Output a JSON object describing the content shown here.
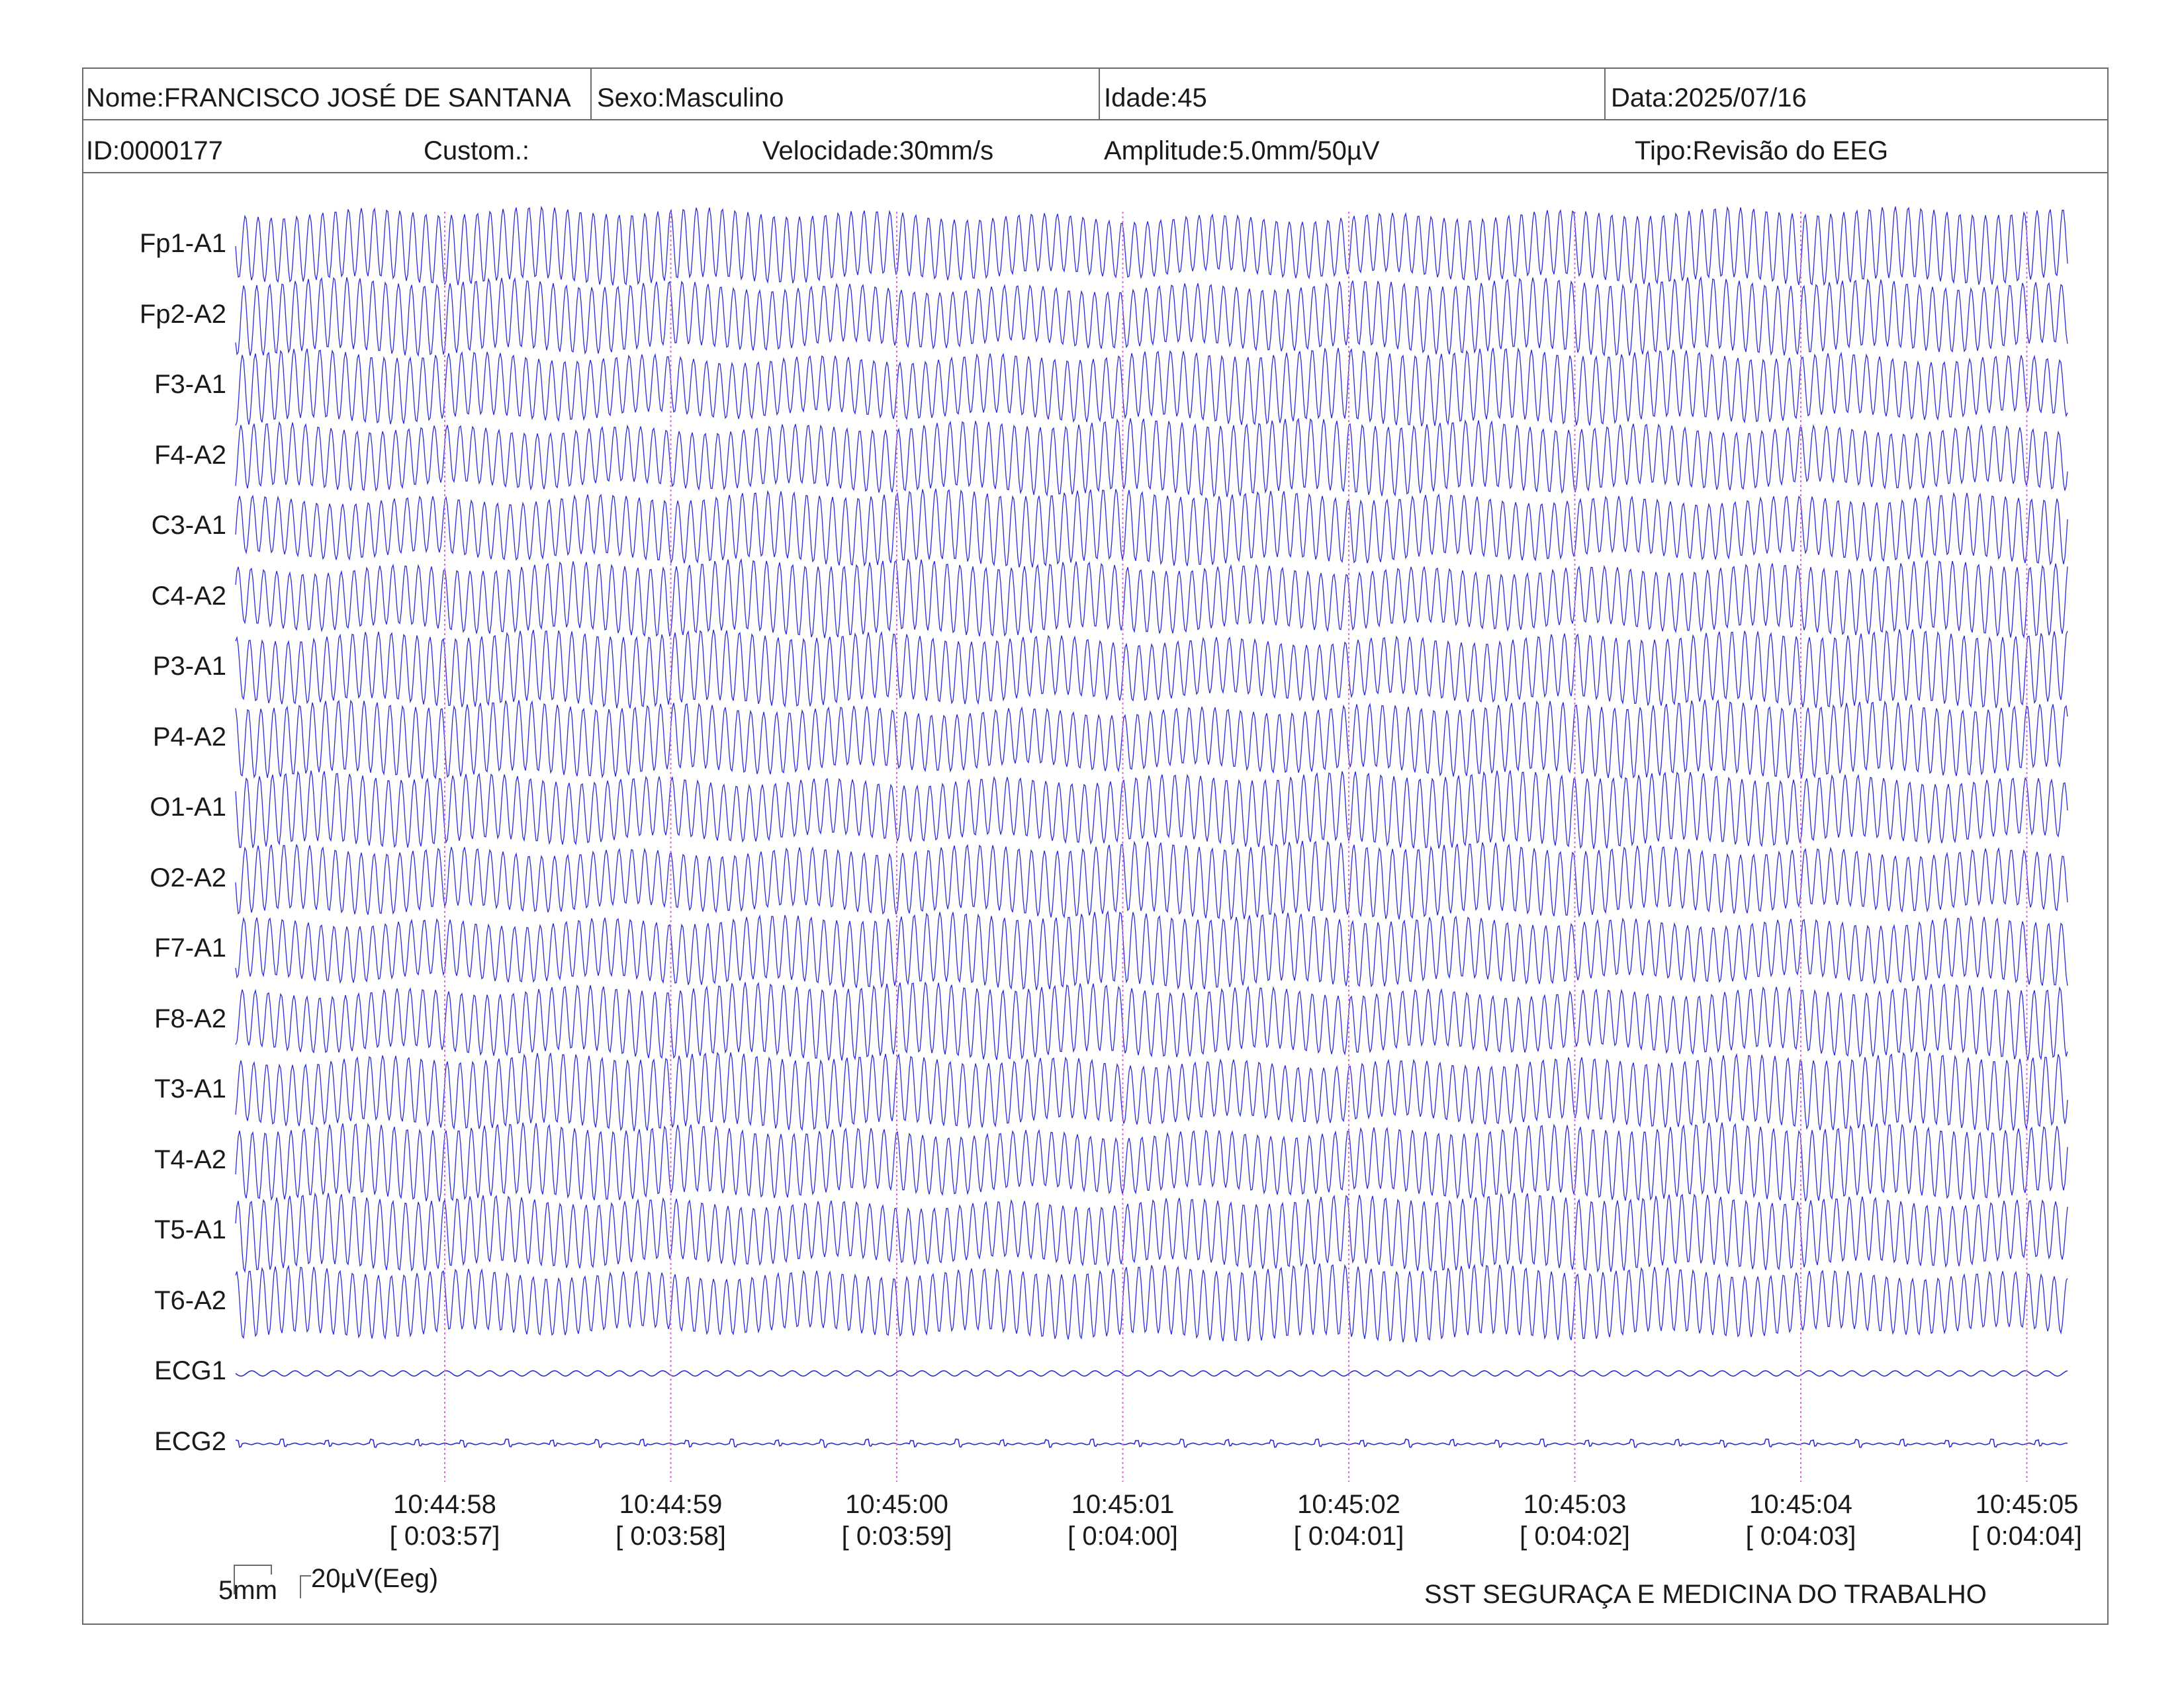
{
  "header": {
    "name": "Nome:FRANCISCO JOSÉ DE SANTANA",
    "sex": "Sexo:Masculino",
    "age": "Idade:45",
    "date": "Data:2025/07/16",
    "id": "ID:0000177",
    "custom": "Custom.:",
    "speed": "Velocidade:30mm/s",
    "amplitude": "Amplitude:5.0mm/50µV",
    "type": "Tipo:Revisão do EEG"
  },
  "channels": [
    "Fp1-A1",
    "Fp2-A2",
    "F3-A1",
    "F4-A2",
    "C3-A1",
    "C4-A2",
    "P3-A1",
    "P4-A2",
    "O1-A1",
    "O2-A2",
    "F7-A1",
    "F8-A2",
    "T3-A1",
    "T4-A2",
    "T5-A1",
    "T6-A2",
    "ECG1",
    "ECG2"
  ],
  "time_marks": [
    {
      "clock": "10:44:58",
      "elapsed": "[ 0:03:57]"
    },
    {
      "clock": "10:44:59",
      "elapsed": "[ 0:03:58]"
    },
    {
      "clock": "10:45:00",
      "elapsed": "[ 0:03:59]"
    },
    {
      "clock": "10:45:01",
      "elapsed": "[ 0:04:00]"
    },
    {
      "clock": "10:45:02",
      "elapsed": "[ 0:04:01]"
    },
    {
      "clock": "10:45:03",
      "elapsed": "[ 0:04:02]"
    },
    {
      "clock": "10:45:04",
      "elapsed": "[ 0:04:03]"
    },
    {
      "clock": "10:45:05",
      "elapsed": "[ 0:04:04]"
    }
  ],
  "scale": {
    "time": "5mm",
    "voltage": "20µV(Eeg)"
  },
  "footer": "SST SEGURAÇA E MEDICINA DO TRABALHO",
  "colors": {
    "trace": "#2b2bd6",
    "marker": "#d86bd8",
    "border": "#6b6b6b"
  }
}
